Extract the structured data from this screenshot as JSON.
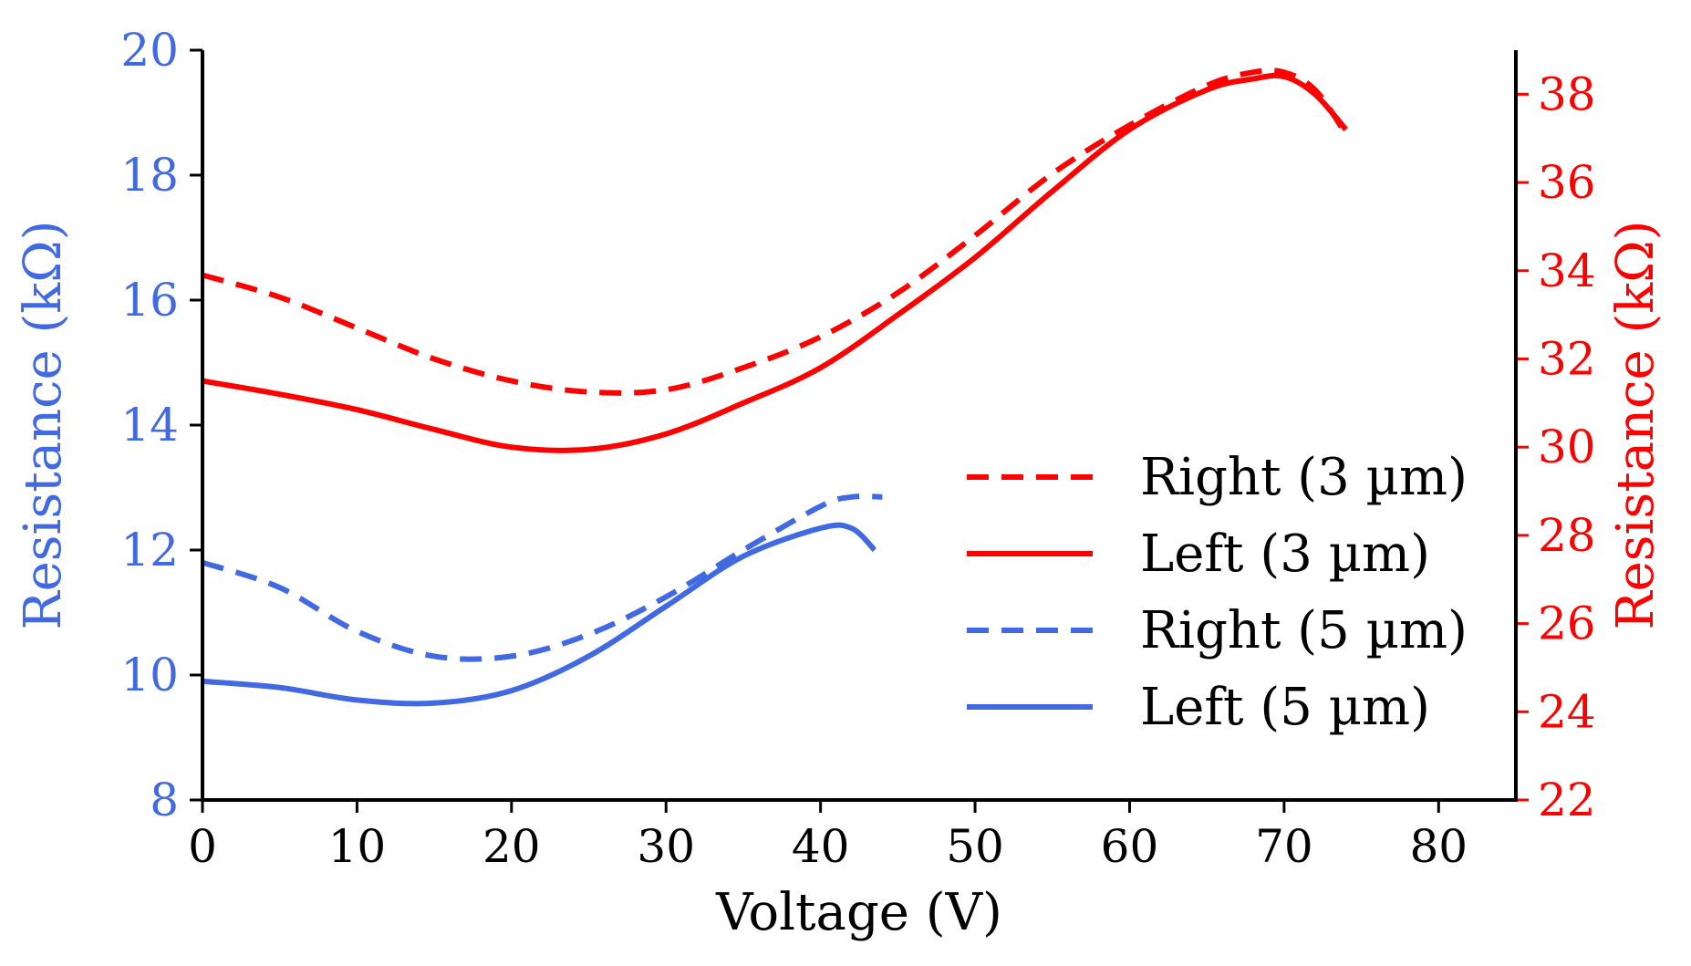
{
  "chart_data": {
    "type": "line",
    "title": "",
    "xlabel": "Voltage (V)",
    "xlim": [
      0,
      85
    ],
    "xticks": [
      0,
      10,
      20,
      30,
      40,
      50,
      60,
      70,
      80
    ],
    "left_axis": {
      "label": "Resistance (kΩ)",
      "ylim": [
        8,
        20
      ],
      "ticks": [
        8,
        10,
        12,
        14,
        16,
        18,
        20
      ],
      "color": "#4169E1"
    },
    "right_axis": {
      "label": "Resistance (kΩ)",
      "ylim": [
        22,
        39
      ],
      "ticks": [
        22,
        24,
        26,
        28,
        30,
        32,
        34,
        36,
        38
      ],
      "color": "#FF0000"
    },
    "legend_position": "center-right",
    "series": [
      {
        "name": "Right (3 µm)",
        "axis": "right",
        "color": "#FF0000",
        "style": "dashed",
        "x": [
          0,
          5,
          10,
          15,
          20,
          25,
          30,
          35,
          40,
          45,
          50,
          55,
          60,
          65,
          68,
          70,
          72,
          74
        ],
        "y": [
          33.9,
          33.4,
          32.7,
          32.0,
          31.5,
          31.25,
          31.3,
          31.8,
          32.5,
          33.5,
          34.8,
          36.2,
          37.3,
          38.2,
          38.5,
          38.5,
          38.1,
          37.1
        ]
      },
      {
        "name": "Left (3 µm)",
        "axis": "right",
        "color": "#FF0000",
        "style": "solid",
        "x": [
          0,
          5,
          10,
          15,
          20,
          25,
          30,
          35,
          40,
          45,
          50,
          55,
          60,
          65,
          68,
          70,
          72,
          74
        ],
        "y": [
          31.5,
          31.2,
          30.85,
          30.4,
          30.0,
          29.95,
          30.3,
          31.0,
          31.8,
          33.0,
          34.3,
          35.8,
          37.2,
          38.1,
          38.35,
          38.4,
          38.0,
          37.2
        ]
      },
      {
        "name": "Right (5 µm)",
        "axis": "left",
        "color": "#4169E1",
        "style": "dashed",
        "x": [
          0,
          5,
          10,
          15,
          20,
          25,
          30,
          35,
          40,
          42,
          44
        ],
        "y": [
          11.8,
          11.4,
          10.7,
          10.3,
          10.3,
          10.65,
          11.25,
          12.0,
          12.7,
          12.85,
          12.85
        ]
      },
      {
        "name": "Left (5 µm)",
        "axis": "left",
        "color": "#4169E1",
        "style": "solid",
        "x": [
          0,
          5,
          10,
          15,
          20,
          25,
          30,
          35,
          40,
          42,
          43.5
        ],
        "y": [
          9.9,
          9.8,
          9.6,
          9.55,
          9.75,
          10.3,
          11.1,
          11.9,
          12.35,
          12.35,
          12.0
        ]
      }
    ]
  }
}
